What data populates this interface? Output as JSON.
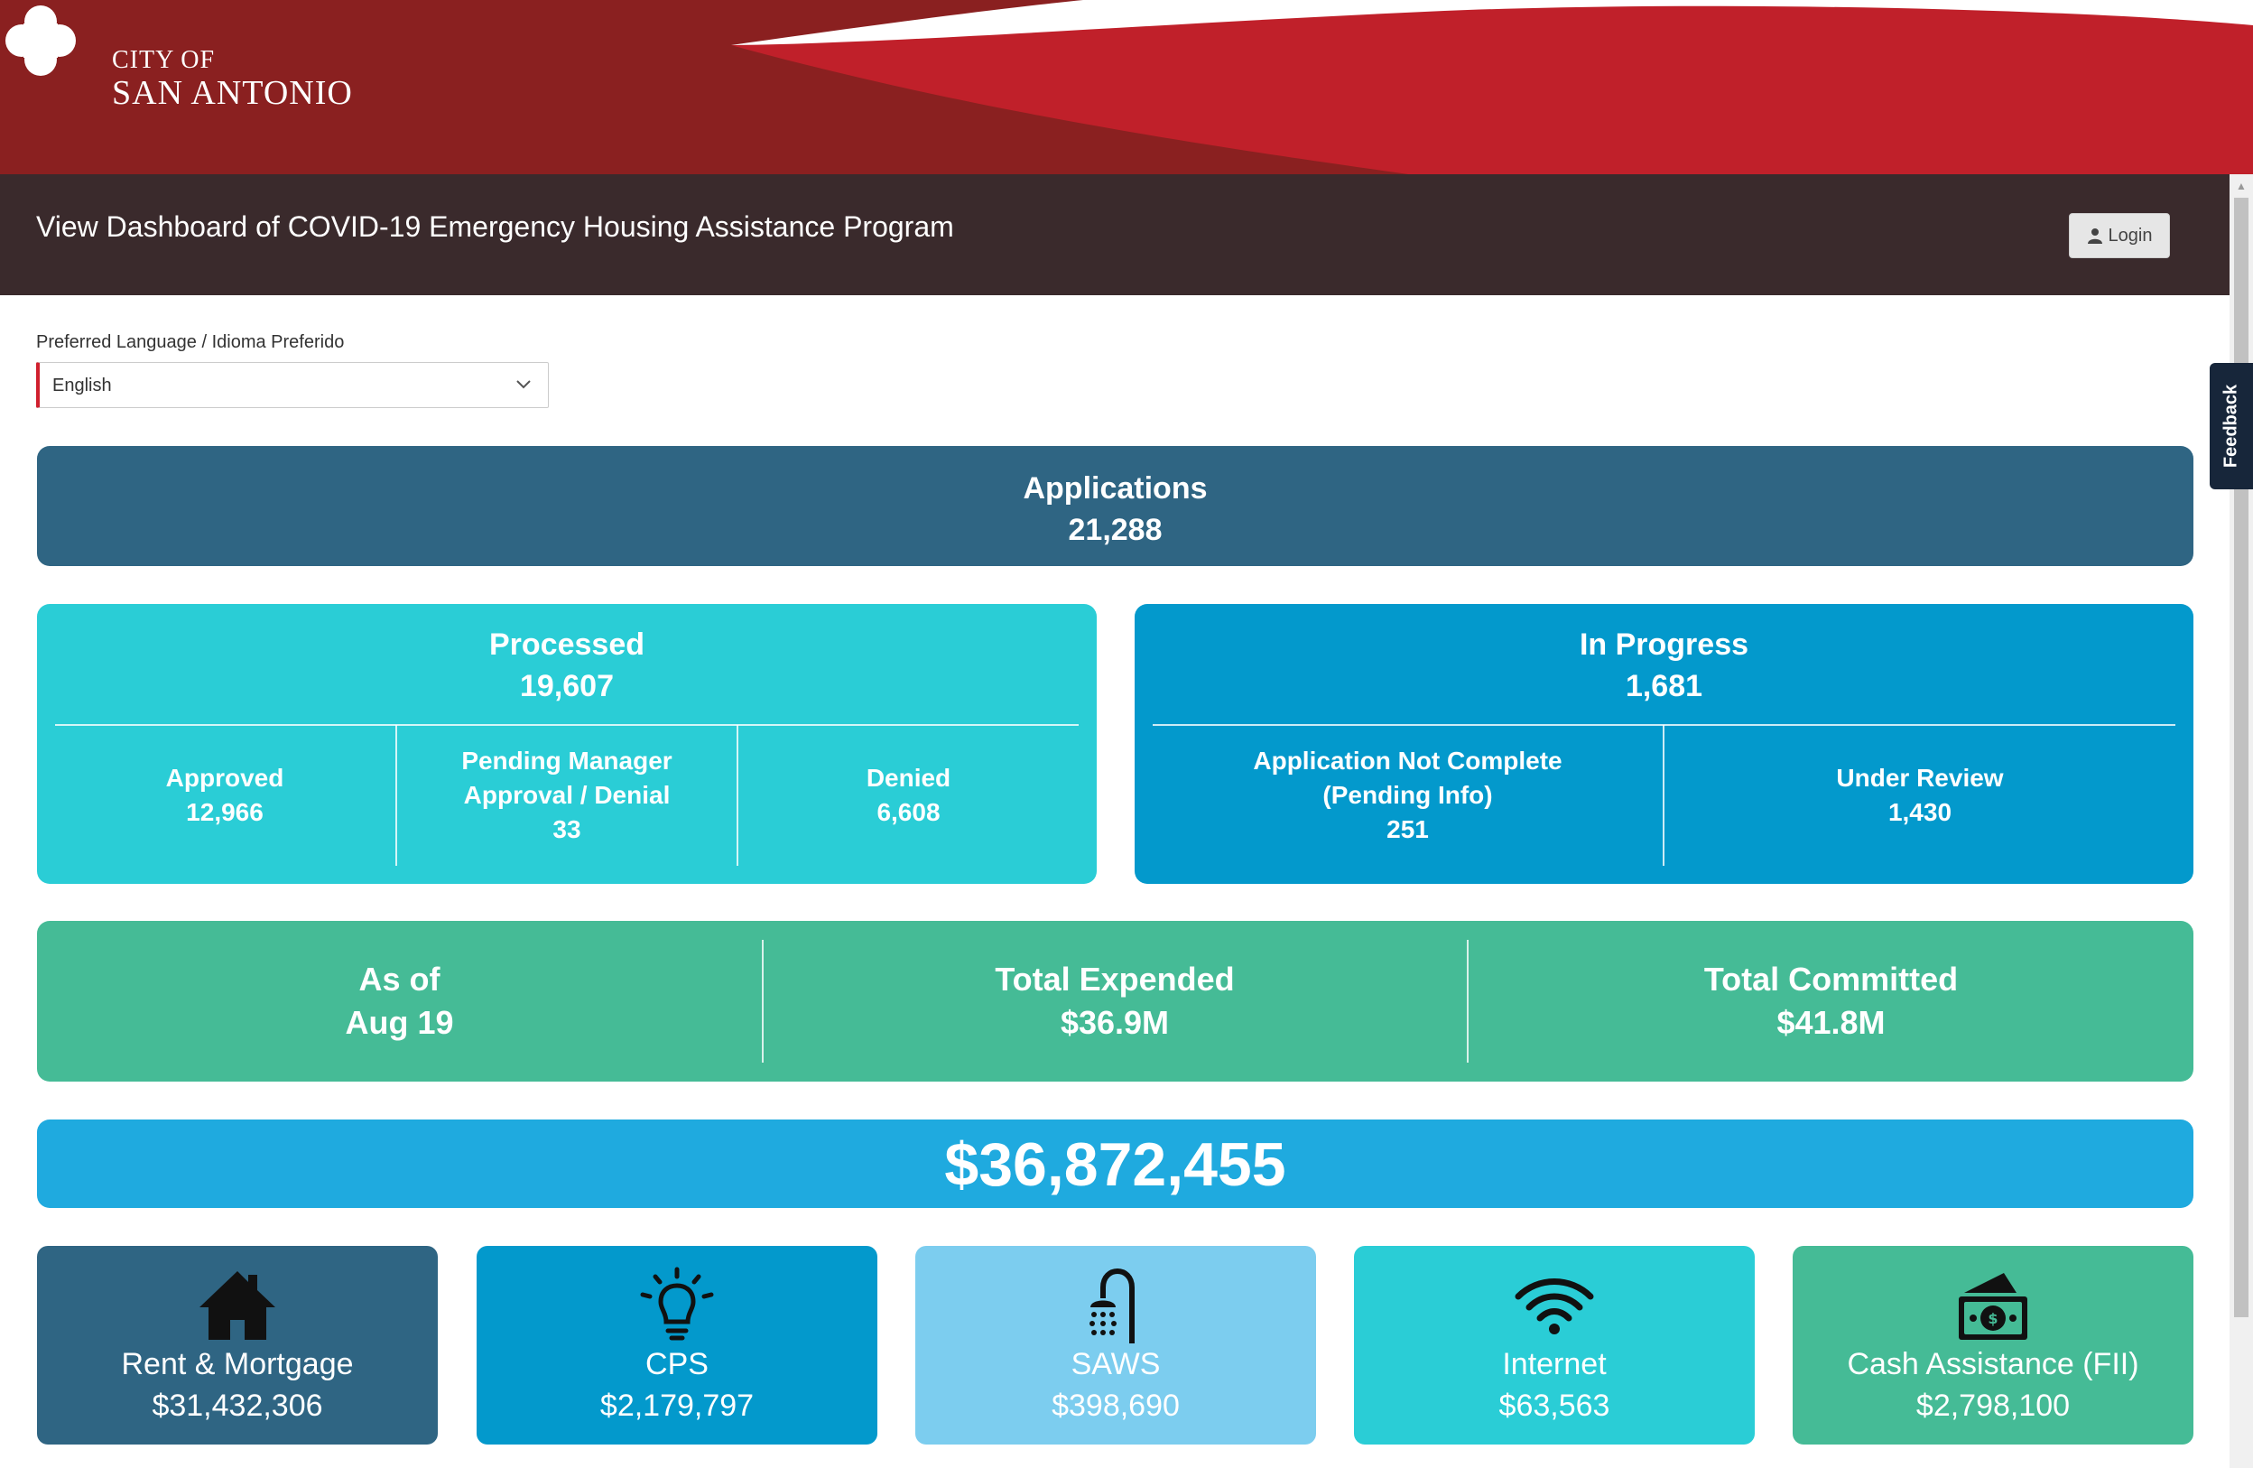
{
  "header": {
    "logo_top": "CITY OF",
    "logo_bottom": "SAN ANTONIO",
    "page_title": "View Dashboard of COVID-19 Emergency Housing Assistance Program",
    "login_label": "Login"
  },
  "feedback_label": "Feedback",
  "language": {
    "label": "Preferred Language / Idioma Preferido",
    "selected": "English"
  },
  "applications": {
    "label": "Applications",
    "value": "21,288"
  },
  "processed": {
    "label": "Processed",
    "value": "19,607",
    "cells": [
      {
        "label": "Approved",
        "value": "12,966"
      },
      {
        "label_line1": "Pending Manager",
        "label_line2": "Approval / Denial",
        "value": "33"
      },
      {
        "label": "Denied",
        "value": "6,608"
      }
    ]
  },
  "in_progress": {
    "label": "In Progress",
    "value": "1,681",
    "cells": [
      {
        "label_line1": "Application Not Complete",
        "label_line2": "(Pending Info)",
        "value": "251"
      },
      {
        "label": "Under Review",
        "value": "1,430"
      }
    ]
  },
  "summary": [
    {
      "label": "As of",
      "value": "Aug 19"
    },
    {
      "label": "Total Expended",
      "value": "$36.9M"
    },
    {
      "label": "Total Committed",
      "value": "$41.8M"
    }
  ],
  "grand_total": "$36,872,455",
  "categories": [
    {
      "label": "Rent & Mortgage",
      "amount": "$31,432,306",
      "icon": "house-icon",
      "color": "#2f6583"
    },
    {
      "label": "CPS",
      "amount": "$2,179,797",
      "icon": "lightbulb-icon",
      "color": "#0399cc"
    },
    {
      "label": "SAWS",
      "amount": "$398,690",
      "icon": "shower-icon",
      "color": "#7ccdef"
    },
    {
      "label": "Internet",
      "amount": "$63,563",
      "icon": "wifi-icon",
      "color": "#2acdd6"
    },
    {
      "label": "Cash Assistance (FII)",
      "amount": "$2,798,100",
      "icon": "money-icon",
      "color": "#45bb96"
    }
  ],
  "colors": {
    "banner_red": "#c0202a",
    "banner_dark": "#8a2020",
    "title_bar": "#3a2a2c"
  }
}
